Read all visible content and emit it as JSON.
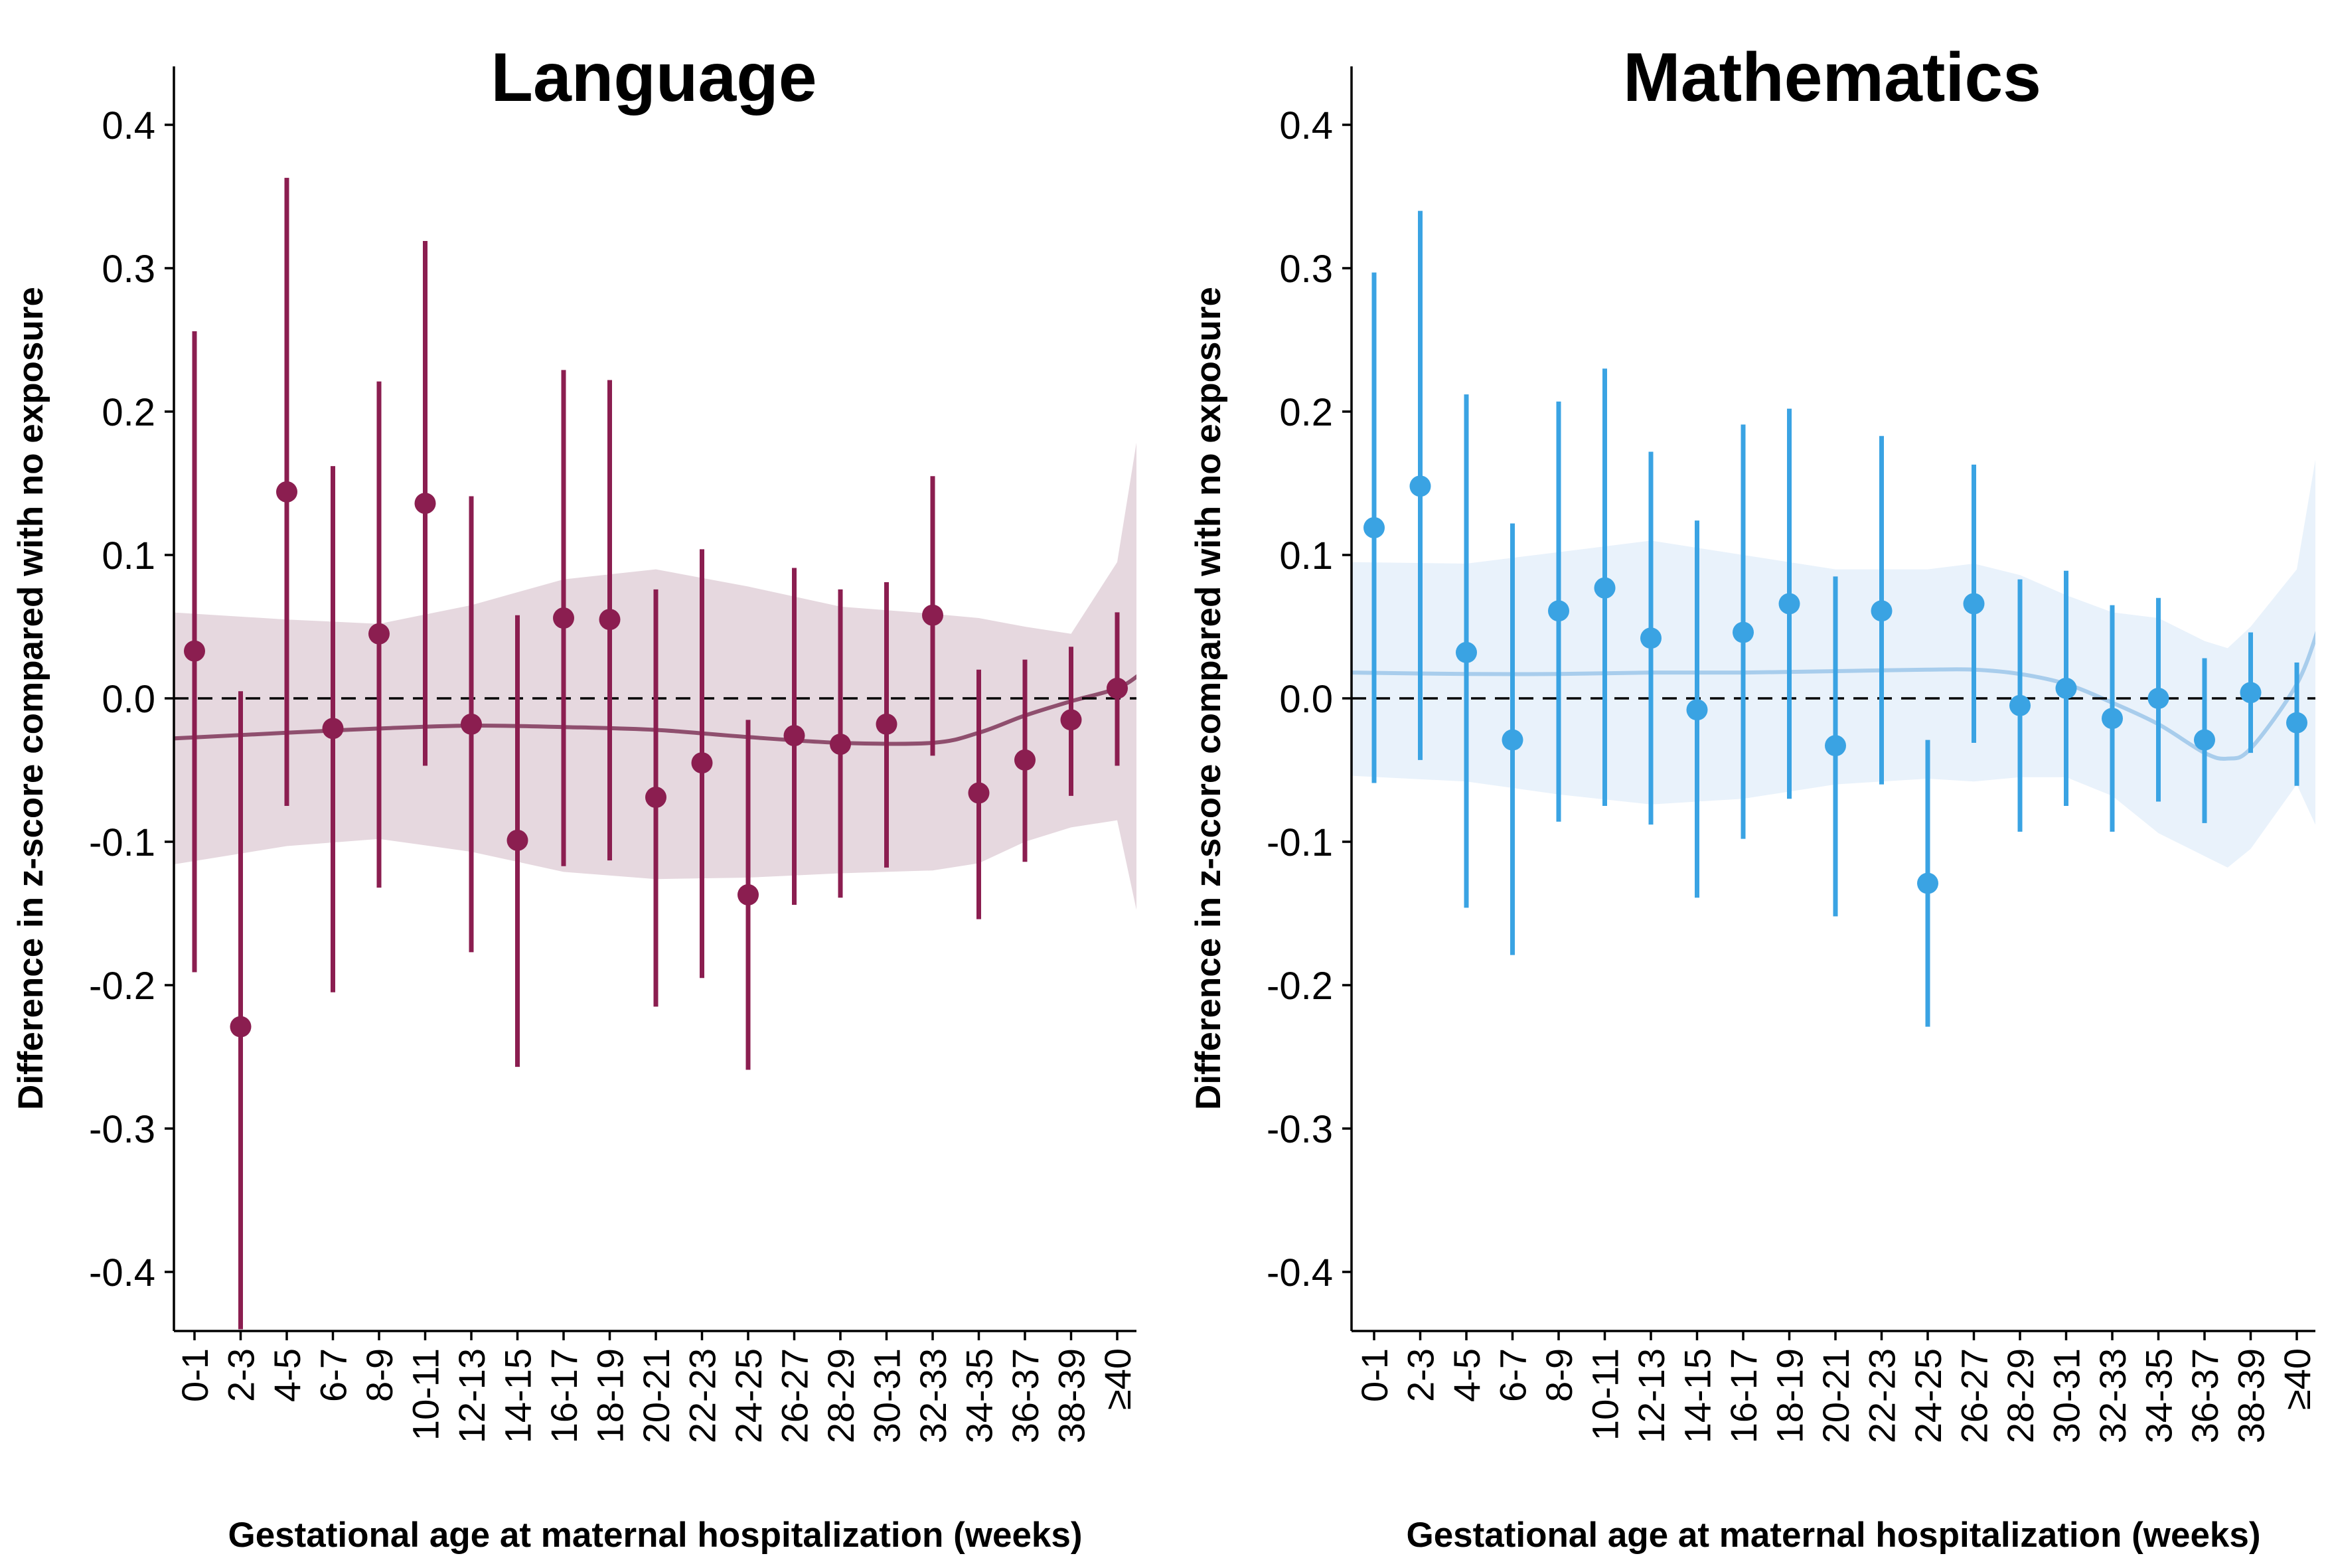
{
  "chart_data": [
    {
      "type": "scatter",
      "title": "Language",
      "xlabel": "Gestational age at maternal hospitalization (weeks)",
      "ylabel": "Difference in z-score compared with no exposure",
      "ylim": [
        -0.44,
        0.44
      ],
      "yticks": [
        "0.4",
        "0.3",
        "0.2",
        "0.1",
        "0.0",
        "-0.1",
        "-0.2",
        "-0.3",
        "-0.4"
      ],
      "ytick_values": [
        0.4,
        0.3,
        0.2,
        0.1,
        0.0,
        -0.1,
        -0.2,
        -0.3,
        -0.4
      ],
      "reference_line": 0.0,
      "color": "#8b1e50",
      "categories": [
        "0-1",
        "2-3",
        "4-5",
        "6-7",
        "8-9",
        "10-11",
        "12-13",
        "14-15",
        "16-17",
        "18-19",
        "20-21",
        "22-23",
        "24-25",
        "26-27",
        "28-29",
        "30-31",
        "32-33",
        "34-35",
        "36-37",
        "38-39",
        "≥40"
      ],
      "values": [
        0.033,
        -0.229,
        0.144,
        -0.021,
        0.045,
        0.136,
        -0.018,
        -0.099,
        0.056,
        0.055,
        -0.069,
        -0.045,
        -0.137,
        -0.026,
        -0.032,
        -0.018,
        0.058,
        -0.066,
        -0.043,
        -0.015,
        0.007
      ],
      "ci_low": [
        -0.191,
        -0.45,
        -0.075,
        -0.205,
        -0.132,
        -0.047,
        -0.177,
        -0.257,
        -0.117,
        -0.113,
        -0.215,
        -0.195,
        -0.259,
        -0.144,
        -0.139,
        -0.118,
        -0.04,
        -0.154,
        -0.114,
        -0.068,
        -0.047
      ],
      "ci_high": [
        0.256,
        0.005,
        0.363,
        0.162,
        0.221,
        0.319,
        0.141,
        0.058,
        0.229,
        0.222,
        0.076,
        0.104,
        -0.015,
        0.091,
        0.076,
        0.081,
        0.155,
        0.02,
        0.027,
        0.036,
        0.06
      ],
      "smooth": {
        "x": [
          -0.5,
          2,
          4,
          6,
          8,
          10,
          12,
          14,
          16,
          17,
          18,
          19,
          20,
          20.5
        ],
        "y": [
          -0.028,
          -0.024,
          -0.021,
          -0.019,
          -0.02,
          -0.022,
          -0.027,
          -0.031,
          -0.031,
          -0.024,
          -0.012,
          -0.002,
          0.007,
          0.017
        ],
        "upper": [
          0.06,
          0.055,
          0.052,
          0.065,
          0.083,
          0.09,
          0.078,
          0.064,
          0.059,
          0.056,
          0.05,
          0.045,
          0.095,
          0.195
        ],
        "lower": [
          -0.116,
          -0.103,
          -0.098,
          -0.107,
          -0.121,
          -0.126,
          -0.125,
          -0.122,
          -0.12,
          -0.115,
          -0.1,
          -0.09,
          -0.085,
          -0.16
        ]
      }
    },
    {
      "type": "scatter",
      "title": "Mathematics",
      "xlabel": "Gestational age at maternal hospitalization (weeks)",
      "ylabel": "Difference in z-score compared with no exposure",
      "ylim": [
        -0.44,
        0.44
      ],
      "yticks": [
        "0.4",
        "0.3",
        "0.2",
        "0.1",
        "0.0",
        "-0.1",
        "-0.2",
        "-0.3",
        "-0.4"
      ],
      "ytick_values": [
        0.4,
        0.3,
        0.2,
        0.1,
        0.0,
        -0.1,
        -0.2,
        -0.3,
        -0.4
      ],
      "reference_line": 0.0,
      "color": "#3aa3e3",
      "categories": [
        "0-1",
        "2-3",
        "4-5",
        "6-7",
        "8-9",
        "10-11",
        "12-13",
        "14-15",
        "16-17",
        "18-19",
        "20-21",
        "22-23",
        "24-25",
        "26-27",
        "28-29",
        "30-31",
        "32-33",
        "34-35",
        "36-37",
        "38-39",
        "≥40"
      ],
      "values": [
        0.119,
        0.148,
        0.032,
        -0.029,
        0.061,
        0.077,
        0.042,
        -0.008,
        0.046,
        0.066,
        -0.033,
        0.061,
        -0.129,
        0.066,
        -0.005,
        0.007,
        -0.014,
        0.0,
        -0.029,
        0.004,
        -0.017
      ],
      "ci_low": [
        -0.059,
        -0.043,
        -0.146,
        -0.179,
        -0.086,
        -0.075,
        -0.088,
        -0.139,
        -0.098,
        -0.07,
        -0.152,
        -0.06,
        -0.229,
        -0.031,
        -0.093,
        -0.075,
        -0.093,
        -0.072,
        -0.087,
        -0.038,
        -0.061
      ],
      "ci_high": [
        0.297,
        0.34,
        0.212,
        0.122,
        0.207,
        0.23,
        0.172,
        0.124,
        0.191,
        0.202,
        0.085,
        0.183,
        -0.029,
        0.163,
        0.083,
        0.089,
        0.065,
        0.07,
        0.028,
        0.046,
        0.025
      ],
      "smooth": {
        "x": [
          -0.5,
          2,
          4,
          6,
          8,
          10,
          12,
          13,
          14,
          15,
          16,
          17,
          18,
          18.5,
          19,
          20,
          20.5
        ],
        "y": [
          0.018,
          0.017,
          0.017,
          0.018,
          0.018,
          0.019,
          0.02,
          0.02,
          0.017,
          0.01,
          -0.003,
          -0.018,
          -0.038,
          -0.042,
          -0.035,
          0.01,
          0.052
        ],
        "upper": [
          0.095,
          0.094,
          0.102,
          0.11,
          0.1,
          0.09,
          0.09,
          0.094,
          0.086,
          0.072,
          0.06,
          0.056,
          0.04,
          0.035,
          0.05,
          0.09,
          0.185
        ],
        "lower": [
          -0.054,
          -0.058,
          -0.067,
          -0.074,
          -0.07,
          -0.06,
          -0.056,
          -0.058,
          -0.055,
          -0.055,
          -0.068,
          -0.094,
          -0.11,
          -0.118,
          -0.105,
          -0.06,
          -0.095
        ]
      }
    }
  ]
}
